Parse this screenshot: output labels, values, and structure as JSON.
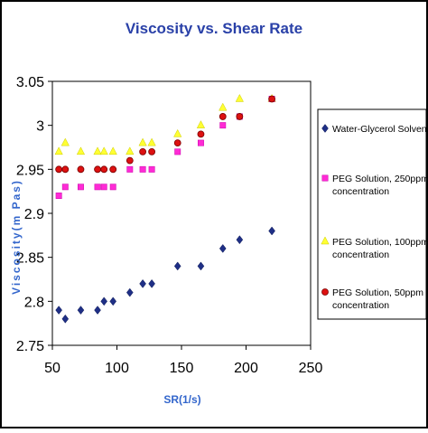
{
  "chart_data": {
    "type": "scatter",
    "title": "Viscosity vs. Shear Rate",
    "xlabel": "SR(1/s)",
    "ylabel": "Viscosity(m Pas)",
    "xlim": [
      50,
      250
    ],
    "ylim": [
      2.75,
      3.05
    ],
    "xticks": [
      "50",
      "100",
      "150",
      "200",
      "250"
    ],
    "yticks": [
      "2.75",
      "2.8",
      "2.85",
      "2.9",
      "2.95",
      "3",
      "3.05"
    ],
    "grid": false,
    "legend_position": "right",
    "series": [
      {
        "name": "Water-Glycerol Solvent",
        "marker": "diamond",
        "color": "#1f2f86",
        "x": [
          55,
          60,
          72,
          85,
          90,
          97,
          110,
          120,
          127,
          147,
          165,
          182,
          195,
          220
        ],
        "y": [
          2.79,
          2.78,
          2.79,
          2.79,
          2.8,
          2.8,
          2.81,
          2.82,
          2.82,
          2.84,
          2.84,
          2.86,
          2.87,
          2.88
        ]
      },
      {
        "name": "PEG Solution, 250ppm concentration",
        "marker": "square",
        "color": "#ff2bd5",
        "x": [
          55,
          60,
          72,
          85,
          90,
          97,
          110,
          120,
          127,
          147,
          165,
          182,
          195,
          220
        ],
        "y": [
          2.92,
          2.93,
          2.93,
          2.93,
          2.93,
          2.93,
          2.95,
          2.95,
          2.95,
          2.97,
          2.98,
          3.0,
          3.01,
          3.03
        ]
      },
      {
        "name": "PEG Solution, 100ppm concentration",
        "marker": "triangle",
        "color": "#ffff33",
        "x": [
          55,
          60,
          72,
          85,
          90,
          97,
          110,
          120,
          127,
          147,
          165,
          182,
          195,
          220
        ],
        "y": [
          2.97,
          2.98,
          2.97,
          2.97,
          2.97,
          2.97,
          2.97,
          2.98,
          2.98,
          2.99,
          3.0,
          3.02,
          3.03,
          3.03
        ]
      },
      {
        "name": "PEG Solution, 50ppm concentration",
        "marker": "circle",
        "color": "#dd1111",
        "x": [
          55,
          60,
          72,
          85,
          90,
          97,
          110,
          120,
          127,
          147,
          165,
          182,
          195,
          220
        ],
        "y": [
          2.95,
          2.95,
          2.95,
          2.95,
          2.95,
          2.95,
          2.96,
          2.97,
          2.97,
          2.98,
          2.99,
          3.01,
          3.01,
          3.03
        ]
      }
    ]
  },
  "legend": {
    "entries": [
      [
        "Water-Glycerol Solvent"
      ],
      [
        "PEG Solution, 250ppm",
        "concentration"
      ],
      [
        "PEG Solution, 100ppm",
        "concentration"
      ],
      [
        "PEG Solution, 50ppm",
        "concentration"
      ]
    ]
  },
  "colors": {
    "title": "#2a41a8",
    "axis_label": "#3366cc",
    "frame": "#000000"
  }
}
